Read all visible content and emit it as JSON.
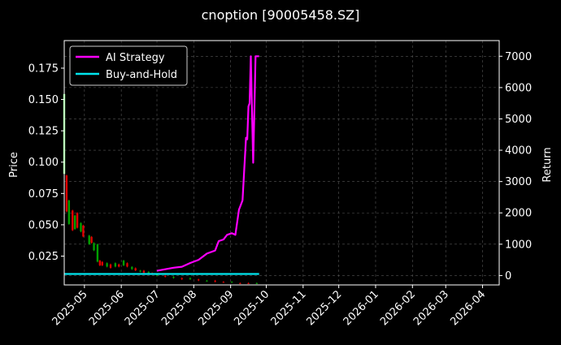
{
  "colors": {
    "background": "#000000",
    "text": "#ffffff",
    "grid": "#555555",
    "ai_strategy": "#ff00ff",
    "buy_and_hold": "#00e5ee",
    "candle_up": "#00a000",
    "candle_down": "#e00000",
    "first_candle": "#7fff7f"
  },
  "chart_data": {
    "type": "line",
    "title": "cnoption [90005458.SZ]",
    "xlabel": "",
    "ylabel_left": "Price",
    "ylabel_right": "Return",
    "grid": true,
    "legend_position": "top-left",
    "x_range": [
      "2025-04-14",
      "2026-04-15"
    ],
    "x_ticks": [
      "2025-05",
      "2025-06",
      "2025-07",
      "2025-08",
      "2025-09",
      "2025-10",
      "2025-11",
      "2025-12",
      "2026-01",
      "2026-02",
      "2026-03",
      "2026-04"
    ],
    "y_left": {
      "ylim": [
        0.002,
        0.197
      ],
      "ticks": [
        "0.025",
        "0.050",
        "0.075",
        "0.100",
        "0.125",
        "0.150",
        "0.175"
      ]
    },
    "y_right": {
      "ylim": [
        -300,
        7500
      ],
      "ticks": [
        "0",
        "1000",
        "2000",
        "3000",
        "4000",
        "5000",
        "6000",
        "7000"
      ]
    },
    "series": [
      {
        "name": "AI Strategy",
        "axis": "right",
        "points": [
          [
            "2025-07-01",
            150
          ],
          [
            "2025-07-08",
            200
          ],
          [
            "2025-07-15",
            250
          ],
          [
            "2025-07-22",
            280
          ],
          [
            "2025-07-29",
            400
          ],
          [
            "2025-08-05",
            500
          ],
          [
            "2025-08-12",
            700
          ],
          [
            "2025-08-19",
            800
          ],
          [
            "2025-08-22",
            1100
          ],
          [
            "2025-08-26",
            1150
          ],
          [
            "2025-08-29",
            1300
          ],
          [
            "2025-09-02",
            1350
          ],
          [
            "2025-09-05",
            1300
          ],
          [
            "2025-09-08",
            2100
          ],
          [
            "2025-09-11",
            2400
          ],
          [
            "2025-09-14",
            4400
          ],
          [
            "2025-09-15",
            4350
          ],
          [
            "2025-09-16",
            5400
          ],
          [
            "2025-09-17",
            5500
          ],
          [
            "2025-09-18",
            7000
          ],
          [
            "2025-09-19",
            5200
          ],
          [
            "2025-09-20",
            3600
          ],
          [
            "2025-09-21",
            5300
          ],
          [
            "2025-09-22",
            7000
          ],
          [
            "2025-09-23",
            7000
          ],
          [
            "2025-09-25",
            7000
          ]
        ]
      },
      {
        "name": "Buy-and-Hold",
        "axis": "right",
        "points": [
          [
            "2025-04-14",
            50
          ],
          [
            "2025-09-25",
            50
          ]
        ]
      }
    ],
    "candles_approx": [
      [
        "2025-04-14",
        0.155,
        0.09,
        "up"
      ],
      [
        "2025-04-16",
        0.09,
        0.06,
        "down"
      ],
      [
        "2025-04-18",
        0.07,
        0.05,
        "up"
      ],
      [
        "2025-04-21",
        0.062,
        0.045,
        "down"
      ],
      [
        "2025-04-23",
        0.058,
        0.046,
        "up"
      ],
      [
        "2025-04-25",
        0.06,
        0.047,
        "down"
      ],
      [
        "2025-04-28",
        0.052,
        0.044,
        "up"
      ],
      [
        "2025-04-30",
        0.05,
        0.04,
        "down"
      ],
      [
        "2025-05-05",
        0.042,
        0.034,
        "up"
      ],
      [
        "2025-05-07",
        0.041,
        0.035,
        "down"
      ],
      [
        "2025-05-09",
        0.036,
        0.029,
        "up"
      ],
      [
        "2025-05-12",
        0.035,
        0.02,
        "up"
      ],
      [
        "2025-05-14",
        0.022,
        0.017,
        "down"
      ],
      [
        "2025-05-16",
        0.021,
        0.017,
        "down"
      ],
      [
        "2025-05-20",
        0.02,
        0.016,
        "up"
      ],
      [
        "2025-05-23",
        0.019,
        0.015,
        "down"
      ],
      [
        "2025-05-27",
        0.02,
        0.016,
        "up"
      ],
      [
        "2025-05-30",
        0.019,
        0.016,
        "down"
      ],
      [
        "2025-06-03",
        0.022,
        0.017,
        "up"
      ],
      [
        "2025-06-06",
        0.02,
        0.016,
        "down"
      ],
      [
        "2025-06-10",
        0.017,
        0.014,
        "up"
      ],
      [
        "2025-06-13",
        0.016,
        0.013,
        "down"
      ],
      [
        "2025-06-17",
        0.014,
        0.012,
        "up"
      ],
      [
        "2025-06-20",
        0.014,
        0.011,
        "down"
      ],
      [
        "2025-06-24",
        0.013,
        0.011,
        "up"
      ],
      [
        "2025-06-27",
        0.012,
        0.01,
        "down"
      ],
      [
        "2025-07-01",
        0.011,
        0.009,
        "up"
      ],
      [
        "2025-07-08",
        0.01,
        0.008,
        "down"
      ],
      [
        "2025-07-15",
        0.009,
        0.007,
        "up"
      ],
      [
        "2025-07-22",
        0.008,
        0.006,
        "down"
      ],
      [
        "2025-07-29",
        0.008,
        0.006,
        "up"
      ],
      [
        "2025-08-05",
        0.007,
        0.005,
        "down"
      ],
      [
        "2025-08-12",
        0.006,
        0.005,
        "up"
      ],
      [
        "2025-08-19",
        0.006,
        0.004,
        "down"
      ],
      [
        "2025-08-26",
        0.005,
        0.004,
        "down"
      ],
      [
        "2025-09-02",
        0.005,
        0.004,
        "up"
      ],
      [
        "2025-09-09",
        0.004,
        0.003,
        "down"
      ],
      [
        "2025-09-16",
        0.004,
        0.003,
        "down"
      ],
      [
        "2025-09-23",
        0.004,
        0.003,
        "up"
      ]
    ]
  }
}
